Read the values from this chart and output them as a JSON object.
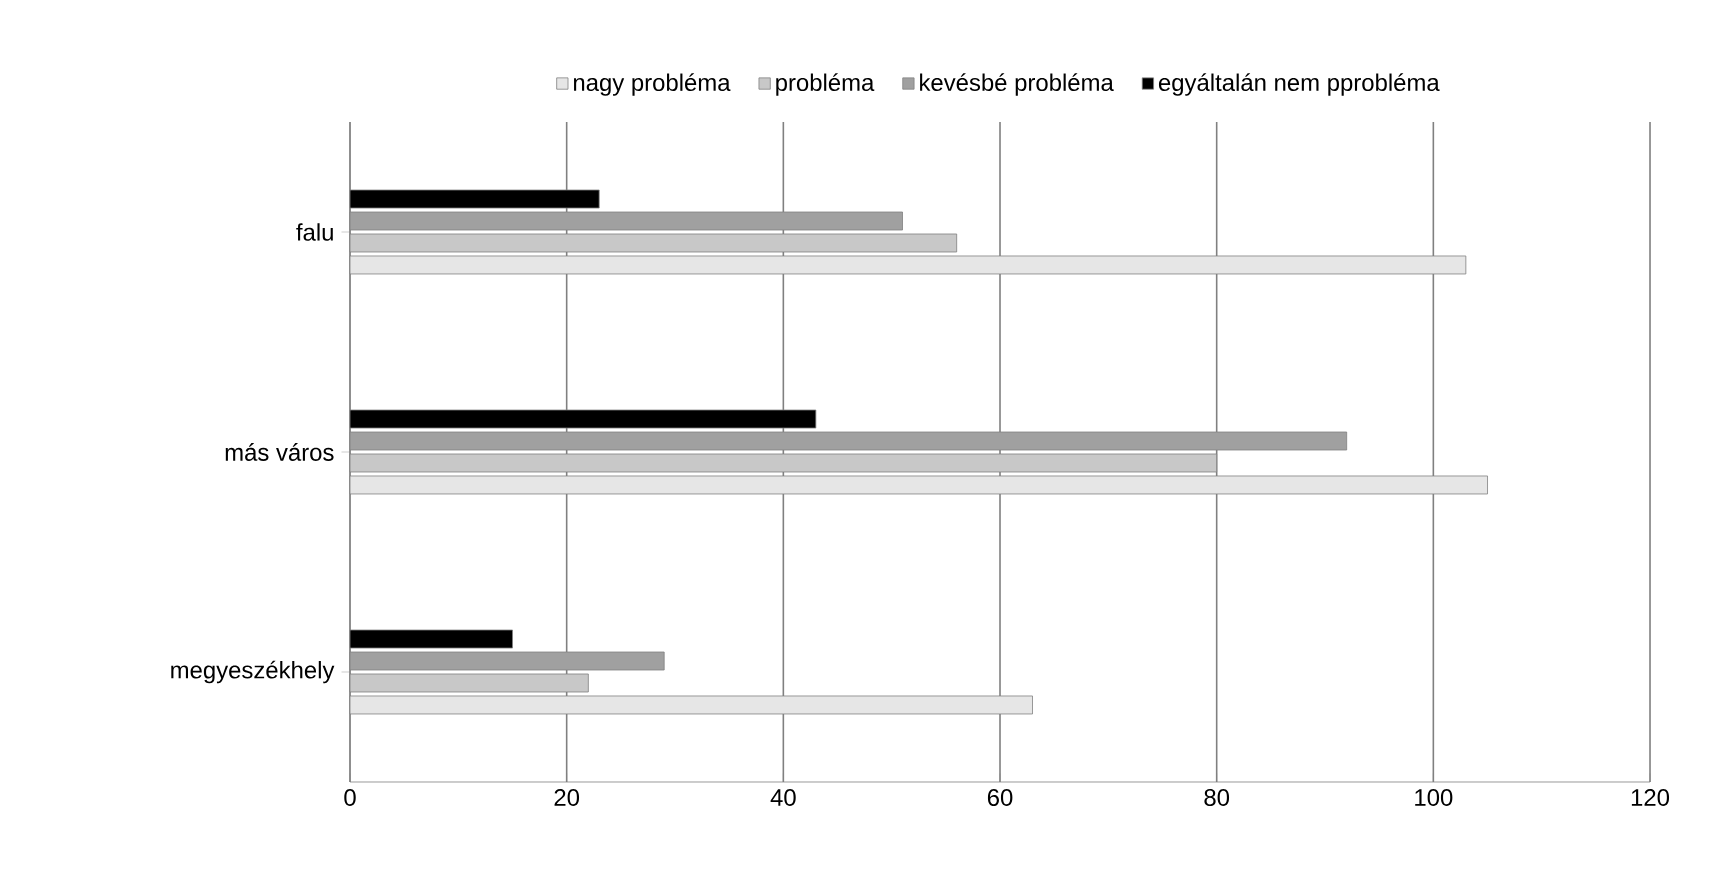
{
  "chart_data": {
    "type": "bar",
    "orientation": "horizontal",
    "categories": [
      "falu",
      "más város",
      "megyeszékhely"
    ],
    "series": [
      {
        "name": "nagy probléma",
        "color": "#e6e6e6",
        "values": [
          103,
          105,
          63
        ]
      },
      {
        "name": "probléma",
        "color": "#c8c8c8",
        "values": [
          56,
          80,
          22
        ]
      },
      {
        "name": "kevésbé probléma",
        "color": "#a0a0a0",
        "values": [
          51,
          92,
          29
        ]
      },
      {
        "name": "egyáltalán nem pprobléma",
        "color": "#000000",
        "values": [
          23,
          43,
          15
        ]
      }
    ],
    "xlim": [
      0,
      120
    ],
    "xticks": [
      0,
      20,
      40,
      60,
      80,
      100,
      120
    ],
    "grid": "x",
    "legend": "top"
  }
}
